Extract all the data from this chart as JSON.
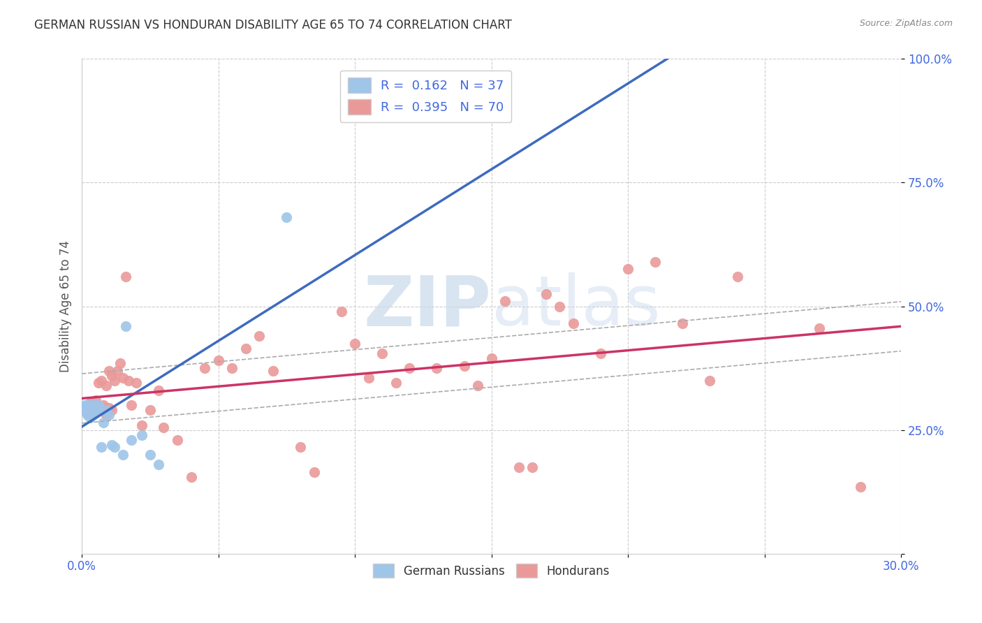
{
  "title": "GERMAN RUSSIAN VS HONDURAN DISABILITY AGE 65 TO 74 CORRELATION CHART",
  "source": "Source: ZipAtlas.com",
  "ylabel": "Disability Age 65 to 74",
  "xlim": [
    0.0,
    0.3
  ],
  "ylim": [
    0.0,
    1.0
  ],
  "blue_color": "#9fc5e8",
  "pink_color": "#ea9999",
  "blue_line_color": "#3d6bbf",
  "pink_line_color": "#cc3366",
  "dash_color": "#aaaaaa",
  "watermark_color": "#c9d9ec",
  "tick_color": "#4169e1",
  "grid_color": "#cccccc",
  "legend_r1": "R =  0.162   N = 37",
  "legend_r2": "R =  0.395   N = 70",
  "german_russian_x": [
    0.001,
    0.001,
    0.001,
    0.002,
    0.002,
    0.002,
    0.002,
    0.002,
    0.003,
    0.003,
    0.003,
    0.003,
    0.003,
    0.003,
    0.004,
    0.004,
    0.004,
    0.004,
    0.005,
    0.005,
    0.005,
    0.006,
    0.006,
    0.006,
    0.007,
    0.008,
    0.009,
    0.01,
    0.011,
    0.012,
    0.015,
    0.016,
    0.018,
    0.022,
    0.025,
    0.028,
    0.075
  ],
  "german_russian_y": [
    0.29,
    0.295,
    0.3,
    0.28,
    0.285,
    0.29,
    0.295,
    0.3,
    0.275,
    0.28,
    0.285,
    0.29,
    0.295,
    0.3,
    0.28,
    0.29,
    0.295,
    0.3,
    0.285,
    0.29,
    0.3,
    0.29,
    0.295,
    0.3,
    0.215,
    0.265,
    0.29,
    0.28,
    0.22,
    0.215,
    0.2,
    0.46,
    0.23,
    0.24,
    0.2,
    0.18,
    0.68
  ],
  "honduran_x": [
    0.001,
    0.001,
    0.002,
    0.002,
    0.002,
    0.003,
    0.003,
    0.003,
    0.004,
    0.004,
    0.005,
    0.005,
    0.005,
    0.006,
    0.006,
    0.007,
    0.007,
    0.008,
    0.009,
    0.009,
    0.01,
    0.01,
    0.011,
    0.011,
    0.012,
    0.013,
    0.014,
    0.015,
    0.016,
    0.017,
    0.018,
    0.02,
    0.022,
    0.025,
    0.028,
    0.03,
    0.035,
    0.04,
    0.045,
    0.05,
    0.055,
    0.06,
    0.065,
    0.07,
    0.08,
    0.085,
    0.095,
    0.1,
    0.105,
    0.11,
    0.115,
    0.12,
    0.13,
    0.14,
    0.145,
    0.15,
    0.155,
    0.16,
    0.165,
    0.17,
    0.175,
    0.18,
    0.19,
    0.2,
    0.21,
    0.22,
    0.23,
    0.24,
    0.27,
    0.285
  ],
  "honduran_y": [
    0.29,
    0.295,
    0.285,
    0.295,
    0.3,
    0.285,
    0.295,
    0.305,
    0.29,
    0.3,
    0.285,
    0.295,
    0.31,
    0.29,
    0.345,
    0.295,
    0.35,
    0.3,
    0.28,
    0.34,
    0.295,
    0.37,
    0.29,
    0.36,
    0.35,
    0.37,
    0.385,
    0.355,
    0.56,
    0.35,
    0.3,
    0.345,
    0.26,
    0.29,
    0.33,
    0.255,
    0.23,
    0.155,
    0.375,
    0.39,
    0.375,
    0.415,
    0.44,
    0.37,
    0.215,
    0.165,
    0.49,
    0.425,
    0.355,
    0.405,
    0.345,
    0.375,
    0.375,
    0.38,
    0.34,
    0.395,
    0.51,
    0.175,
    0.175,
    0.525,
    0.5,
    0.465,
    0.405,
    0.575,
    0.59,
    0.465,
    0.35,
    0.56,
    0.455,
    0.135
  ]
}
